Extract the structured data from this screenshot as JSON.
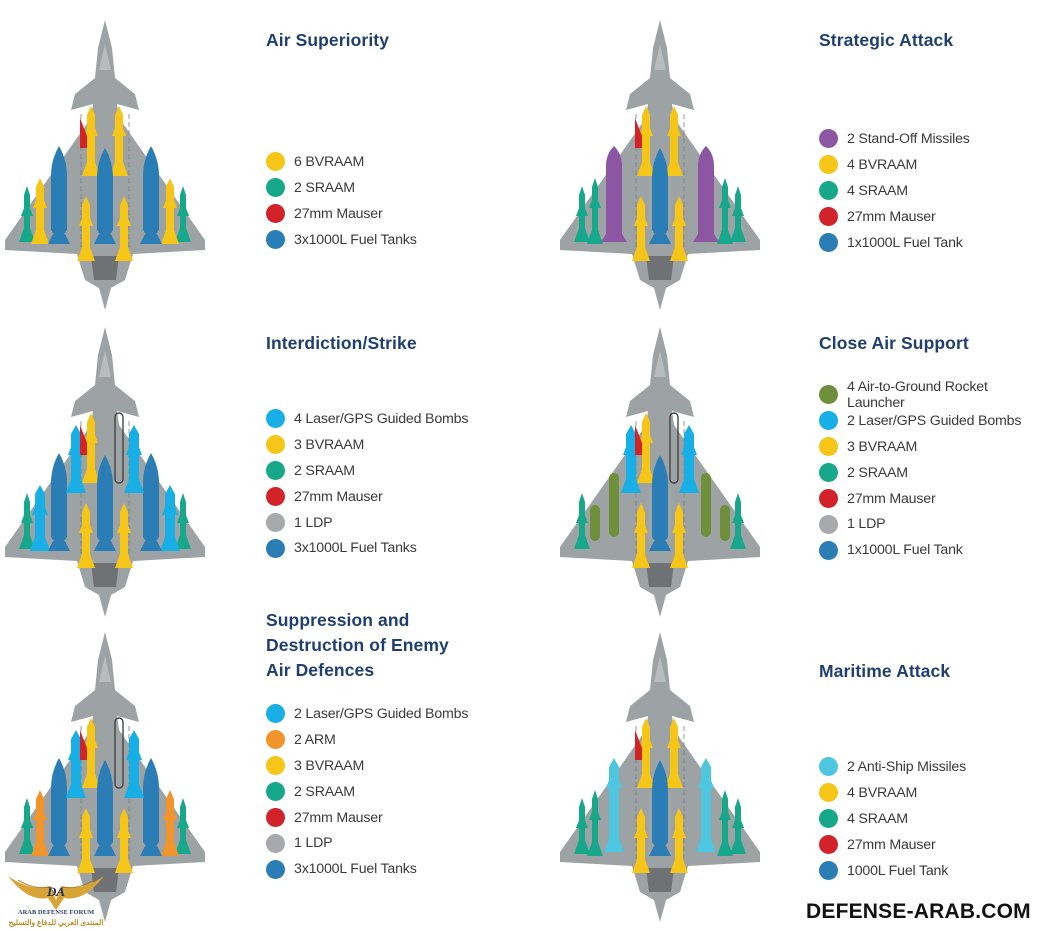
{
  "colors": {
    "title": "#1f3f72",
    "airframe": "#9da2a5",
    "BVRAAM": "#f5c518",
    "SRAAM": "#17a88c",
    "Mauser": "#d2232a",
    "FuelTank": "#2b7db5",
    "GuidedBomb": "#18aee6",
    "StandOff": "#8c56a3",
    "RocketLauncher": "#6f8f3a",
    "LDP": "#a7a9ac",
    "ARM": "#f1942b",
    "AntiShip": "#4ec6e0"
  },
  "panels": [
    {
      "id": "air-superiority",
      "title": "Air Superiority",
      "items": [
        {
          "label": "6 BVRAAM",
          "color": "#f5c518",
          "icon": "bvraam-dot"
        },
        {
          "label": "2 SRAAM",
          "color": "#17a88c",
          "icon": "sraam-dot"
        },
        {
          "label": "27mm Mauser",
          "color": "#d2232a",
          "icon": "mauser-dot"
        },
        {
          "label": "3x1000L Fuel Tanks",
          "color": "#2b7db5",
          "icon": "fuel-tank-dot"
        }
      ]
    },
    {
      "id": "strategic-attack",
      "title": "Strategic Attack",
      "items": [
        {
          "label": "2 Stand-Off Missiles",
          "color": "#8c56a3",
          "icon": "stand-off-dot"
        },
        {
          "label": "4 BVRAAM",
          "color": "#f5c518",
          "icon": "bvraam-dot"
        },
        {
          "label": "4 SRAAM",
          "color": "#17a88c",
          "icon": "sraam-dot"
        },
        {
          "label": "27mm Mauser",
          "color": "#d2232a",
          "icon": "mauser-dot"
        },
        {
          "label": "1x1000L Fuel Tank",
          "color": "#2b7db5",
          "icon": "fuel-tank-dot"
        }
      ]
    },
    {
      "id": "interdiction-strike",
      "title": "Interdiction/Strike",
      "items": [
        {
          "label": "4 Laser/GPS Guided Bombs",
          "color": "#18aee6",
          "icon": "guided-bomb-dot"
        },
        {
          "label": "3 BVRAAM",
          "color": "#f5c518",
          "icon": "bvraam-dot"
        },
        {
          "label": "2 SRAAM",
          "color": "#17a88c",
          "icon": "sraam-dot"
        },
        {
          "label": "27mm Mauser",
          "color": "#d2232a",
          "icon": "mauser-dot"
        },
        {
          "label": "1 LDP",
          "color": "#a7a9ac",
          "icon": "ldp-dot"
        },
        {
          "label": "3x1000L Fuel Tanks",
          "color": "#2b7db5",
          "icon": "fuel-tank-dot"
        }
      ]
    },
    {
      "id": "close-air-support",
      "title": "Close Air Support",
      "items": [
        {
          "label": "4 Air-to-Ground Rocket Launcher",
          "color": "#6f8f3a",
          "icon": "rocket-launcher-dot"
        },
        {
          "label": "2 Laser/GPS Guided Bombs",
          "color": "#18aee6",
          "icon": "guided-bomb-dot"
        },
        {
          "label": "3 BVRAAM",
          "color": "#f5c518",
          "icon": "bvraam-dot"
        },
        {
          "label": "2 SRAAM",
          "color": "#17a88c",
          "icon": "sraam-dot"
        },
        {
          "label": "27mm Mauser",
          "color": "#d2232a",
          "icon": "mauser-dot"
        },
        {
          "label": "1 LDP",
          "color": "#a7a9ac",
          "icon": "ldp-dot"
        },
        {
          "label": "1x1000L Fuel Tank",
          "color": "#2b7db5",
          "icon": "fuel-tank-dot"
        }
      ]
    },
    {
      "id": "sead",
      "title": "Suppression and\nDestruction of Enemy\nAir Defences",
      "items": [
        {
          "label": "2 Laser/GPS Guided Bombs",
          "color": "#18aee6",
          "icon": "guided-bomb-dot"
        },
        {
          "label": "2 ARM",
          "color": "#f1942b",
          "icon": "arm-dot"
        },
        {
          "label": "3 BVRAAM",
          "color": "#f5c518",
          "icon": "bvraam-dot"
        },
        {
          "label": "2 SRAAM",
          "color": "#17a88c",
          "icon": "sraam-dot"
        },
        {
          "label": "27mm Mauser",
          "color": "#d2232a",
          "icon": "mauser-dot"
        },
        {
          "label": "1 LDP",
          "color": "#a7a9ac",
          "icon": "ldp-dot"
        },
        {
          "label": "3x1000L Fuel Tanks",
          "color": "#2b7db5",
          "icon": "fuel-tank-dot"
        }
      ]
    },
    {
      "id": "maritime-attack",
      "title": "Maritime Attack",
      "items": [
        {
          "label": "2 Anti-Ship Missiles",
          "color": "#4ec6e0",
          "icon": "anti-ship-dot"
        },
        {
          "label": "4 BVRAAM",
          "color": "#f5c518",
          "icon": "bvraam-dot"
        },
        {
          "label": "4 SRAAM",
          "color": "#17a88c",
          "icon": "sraam-dot"
        },
        {
          "label": "27mm Mauser",
          "color": "#d2232a",
          "icon": "mauser-dot"
        },
        {
          "label": "1000L Fuel Tank",
          "color": "#2b7db5",
          "icon": "fuel-tank-dot"
        }
      ]
    }
  ],
  "loadouts": [
    [
      {
        "type": "SRAAM",
        "station": "outer",
        "side": "both"
      },
      {
        "type": "BVRAAM",
        "station": "mid-outer",
        "side": "both"
      },
      {
        "type": "FuelTank",
        "station": "mid-inner",
        "side": "both"
      },
      {
        "type": "BVRAAM",
        "station": "inner",
        "side": "both"
      },
      {
        "type": "BVRAAM",
        "station": "fuselage-front",
        "side": "both"
      },
      {
        "type": "FuelTank",
        "station": "center"
      },
      {
        "type": "Mauser",
        "station": "gun"
      }
    ],
    [
      {
        "type": "SRAAM",
        "station": "outer",
        "side": "both"
      },
      {
        "type": "SRAAM",
        "station": "mid-outer",
        "side": "both"
      },
      {
        "type": "StandOff",
        "station": "mid-inner",
        "side": "both"
      },
      {
        "type": "BVRAAM",
        "station": "inner",
        "side": "both"
      },
      {
        "type": "BVRAAM",
        "station": "fuselage-front",
        "side": "both"
      },
      {
        "type": "FuelTank",
        "station": "center"
      },
      {
        "type": "Mauser",
        "station": "gun"
      }
    ],
    [
      {
        "type": "SRAAM",
        "station": "outer",
        "side": "both"
      },
      {
        "type": "GuidedBomb",
        "station": "mid-outer",
        "side": "both"
      },
      {
        "type": "FuelTank",
        "station": "mid-inner",
        "side": "both"
      },
      {
        "type": "BVRAAM",
        "station": "inner",
        "side": "both"
      },
      {
        "type": "GuidedBomb",
        "station": "fuselage-rear",
        "side": "both"
      },
      {
        "type": "BVRAAM",
        "station": "fuselage-front",
        "side": "left"
      },
      {
        "type": "LDP",
        "station": "fuselage-front",
        "side": "right"
      },
      {
        "type": "FuelTank",
        "station": "center"
      },
      {
        "type": "Mauser",
        "station": "gun"
      }
    ],
    [
      {
        "type": "SRAAM",
        "station": "outer",
        "side": "both"
      },
      {
        "type": "RocketLauncher",
        "station": "mid-outer",
        "side": "both"
      },
      {
        "type": "RocketLauncher",
        "station": "mid-inner",
        "side": "both"
      },
      {
        "type": "BVRAAM",
        "station": "inner",
        "side": "both"
      },
      {
        "type": "GuidedBomb",
        "station": "fuselage-rear",
        "side": "both"
      },
      {
        "type": "BVRAAM",
        "station": "fuselage-front",
        "side": "left"
      },
      {
        "type": "LDP",
        "station": "fuselage-front",
        "side": "right"
      },
      {
        "type": "FuelTank",
        "station": "center"
      },
      {
        "type": "Mauser",
        "station": "gun"
      }
    ],
    [
      {
        "type": "SRAAM",
        "station": "outer",
        "side": "both"
      },
      {
        "type": "ARM",
        "station": "mid-outer",
        "side": "both"
      },
      {
        "type": "FuelTank",
        "station": "mid-inner",
        "side": "both"
      },
      {
        "type": "BVRAAM",
        "station": "inner",
        "side": "both"
      },
      {
        "type": "GuidedBomb",
        "station": "fuselage-rear",
        "side": "both"
      },
      {
        "type": "BVRAAM",
        "station": "fuselage-front",
        "side": "left"
      },
      {
        "type": "LDP",
        "station": "fuselage-front",
        "side": "right"
      },
      {
        "type": "FuelTank",
        "station": "center"
      },
      {
        "type": "Mauser",
        "station": "gun"
      }
    ],
    [
      {
        "type": "SRAAM",
        "station": "outer",
        "side": "both"
      },
      {
        "type": "SRAAM",
        "station": "mid-outer",
        "side": "both"
      },
      {
        "type": "AntiShip",
        "station": "mid-inner",
        "side": "both"
      },
      {
        "type": "BVRAAM",
        "station": "inner",
        "side": "both"
      },
      {
        "type": "BVRAAM",
        "station": "fuselage-front",
        "side": "both"
      },
      {
        "type": "FuelTank",
        "station": "center"
      },
      {
        "type": "Mauser",
        "station": "gun"
      }
    ]
  ],
  "watermark": "DEFENSE-ARAB.COM",
  "logo": {
    "initials": "DA",
    "name": "ARAB DEFENSE FORUM",
    "arabic": "المنتدى العربي للدفاع والتسليح"
  }
}
